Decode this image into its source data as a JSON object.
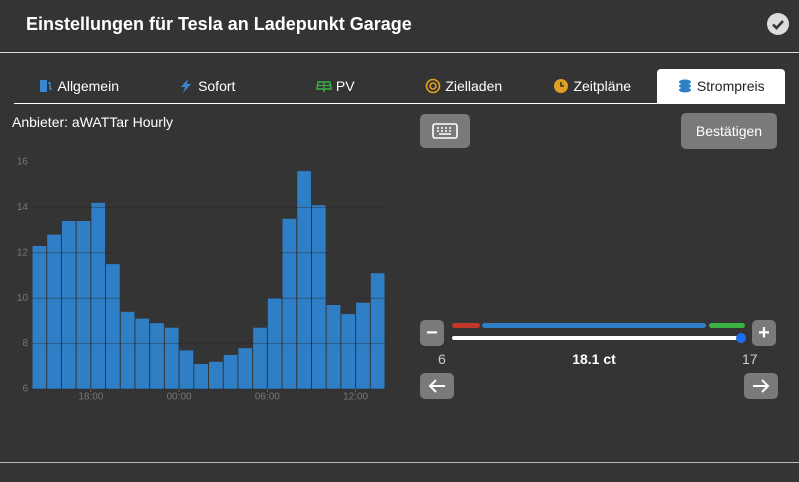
{
  "header": {
    "title": "Einstellungen für Tesla an Ladepunkt Garage"
  },
  "tabs": [
    "Allgemein",
    "Sofort",
    "PV",
    "Zielladen",
    "Zeitpläne",
    "Strompreis"
  ],
  "provider": "Anbieter: aWATTar Hourly",
  "confirm": "Bestätigen",
  "slider": {
    "min": 6,
    "max": 17,
    "label": "18.1 ct"
  },
  "chart_data": {
    "type": "bar",
    "color": "#2f7fc6",
    "categories": [
      null,
      null,
      null,
      null,
      null,
      null,
      null,
      null,
      null,
      null,
      null,
      null,
      null,
      null,
      null,
      null,
      null,
      null,
      null,
      null,
      null,
      null,
      null,
      null
    ],
    "values": [
      12.3,
      12.8,
      13.4,
      13.4,
      14.2,
      11.5,
      9.4,
      9.1,
      8.9,
      8.7,
      7.7,
      7.1,
      7.2,
      7.5,
      7.8,
      8.7,
      10.0,
      13.5,
      15.6,
      14.1,
      9.7,
      9.3,
      9.8,
      11.1
    ],
    "ylim": [
      6,
      16
    ],
    "yticks": [
      6,
      8,
      10,
      12,
      14,
      16
    ],
    "grid": true,
    "xticks": [
      {
        "value": 4,
        "label": "18:00"
      },
      {
        "value": 10,
        "label": "00:00"
      },
      {
        "value": 16,
        "label": "06:00"
      },
      {
        "value": 22,
        "label": "12:00"
      }
    ]
  }
}
